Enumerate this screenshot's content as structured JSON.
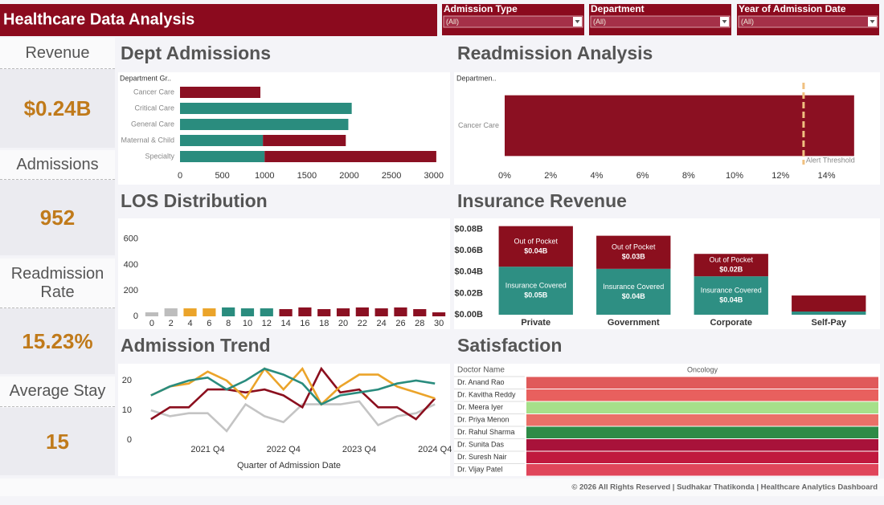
{
  "header": {
    "title": "Healthcare Data Analysis"
  },
  "filters": [
    {
      "label": "Admission Type",
      "value": "(All)"
    },
    {
      "label": "Department",
      "value": "(All)"
    },
    {
      "label": "Year of Admission Date",
      "value": "(All)"
    }
  ],
  "kpis": [
    {
      "label": "Revenue",
      "value": "$0.24B"
    },
    {
      "label": "Admissions",
      "value": "952"
    },
    {
      "label": "Readmission Rate",
      "value": "15.23%"
    },
    {
      "label": "Average Stay",
      "value": "15"
    }
  ],
  "chart_data": [
    {
      "type": "barh",
      "title": "Dept Admissions",
      "y_label": "Department Gr..",
      "categories": [
        "Cancer Care",
        "Critical Care",
        "General Care",
        "Maternal & Child",
        "Specialty"
      ],
      "series": [
        {
          "color": "#2a8c7e",
          "values": [
            0,
            2030,
            1990,
            980,
            1000
          ]
        },
        {
          "color": "#8b1022",
          "values": [
            950,
            0,
            0,
            980,
            2030
          ]
        }
      ],
      "xlim": [
        0,
        3050
      ],
      "xticks": [
        0,
        500,
        1000,
        1500,
        2000,
        2500,
        3000
      ]
    },
    {
      "type": "barh",
      "title": "Readmission Analysis",
      "y_label": "Departmen..",
      "categories": [
        "Cancer Care"
      ],
      "values": [
        15.2
      ],
      "color": "#8b1022",
      "xlim": [
        0,
        15.8
      ],
      "xticks": [
        {
          "value": 0,
          "label": "0%"
        },
        {
          "value": 2,
          "label": "2%"
        },
        {
          "value": 4,
          "label": "4%"
        },
        {
          "value": 6,
          "label": "6%"
        },
        {
          "value": 8,
          "label": "8%"
        },
        {
          "value": 10,
          "label": "10%"
        },
        {
          "value": 12,
          "label": "12%"
        },
        {
          "value": 14,
          "label": "14%"
        }
      ],
      "reference_line": {
        "value": 13,
        "label": "Alert Threshold",
        "color": "#f0c080"
      }
    },
    {
      "type": "bar",
      "title": "LOS Distribution",
      "categories": [
        0,
        2,
        4,
        6,
        8,
        10,
        12,
        14,
        16,
        18,
        20,
        22,
        24,
        26,
        28,
        30
      ],
      "values": [
        31,
        62,
        62,
        62,
        69,
        62,
        62,
        56,
        69,
        56,
        62,
        69,
        62,
        69,
        56,
        31
      ],
      "colors": [
        "#bdbdbd",
        "#bdbdbd",
        "#eba42a",
        "#eba42a",
        "#2a8c7e",
        "#2a8c7e",
        "#2a8c7e",
        "#8b1022",
        "#8b1022",
        "#8b1022",
        "#8b1022",
        "#8b1022",
        "#8b1022",
        "#8b1022",
        "#8b1022",
        "#8b1022"
      ],
      "ylim": [
        0,
        680
      ],
      "yticks": [
        0,
        200,
        400,
        600
      ]
    },
    {
      "type": "bar",
      "title": "Insurance Revenue",
      "categories": [
        "Private",
        "Government",
        "Corporate",
        "Self-Pay"
      ],
      "series": [
        {
          "name": "Insurance Covered",
          "color": "#2e8f83",
          "values": [
            0.045,
            0.043,
            0.036,
            0.003
          ],
          "value_labels": [
            "$0.05B",
            "$0.04B",
            "$0.04B",
            null
          ]
        },
        {
          "name": "Out of Pocket",
          "color": "#8b0f1e",
          "values": [
            0.038,
            0.031,
            0.021,
            0.015
          ],
          "value_labels": [
            "$0.04B",
            "$0.03B",
            "$0.02B",
            null
          ]
        }
      ],
      "ylim": [
        0,
        0.085
      ],
      "yticks": [
        {
          "value": 0,
          "label": "$0.00B"
        },
        {
          "value": 0.02,
          "label": "$0.02B"
        },
        {
          "value": 0.04,
          "label": "$0.04B"
        },
        {
          "value": 0.06,
          "label": "$0.06B"
        },
        {
          "value": 0.08,
          "label": "$0.08B"
        }
      ]
    },
    {
      "type": "line",
      "title": "Admission Trend",
      "x_label": "Quarter of Admission Date",
      "categories": [
        null,
        null,
        null,
        "2021 Q4",
        null,
        null,
        null,
        "2022 Q4",
        null,
        null,
        null,
        "2023 Q4",
        null,
        null,
        null,
        "2024 Q4"
      ],
      "series": [
        {
          "color": "#2a8c7e",
          "values": [
            15,
            18,
            20,
            21,
            17,
            20,
            24,
            22,
            19,
            12,
            15,
            16,
            17,
            19,
            20,
            19
          ]
        },
        {
          "color": "#eba42a",
          "values": [
            15,
            18,
            19,
            23,
            20,
            14,
            24,
            17,
            24,
            12,
            18,
            22,
            22,
            18,
            16,
            14
          ]
        },
        {
          "color": "#8b0f1e",
          "values": [
            7,
            11,
            11,
            17,
            17,
            16,
            17,
            15,
            11,
            24,
            16,
            17,
            11,
            11,
            7,
            14
          ]
        },
        {
          "color": "#c4c4c4",
          "values": [
            10,
            8,
            9,
            9,
            3,
            12,
            8,
            6,
            12,
            12,
            12,
            13,
            5,
            8,
            9,
            12
          ]
        }
      ],
      "ylim": [
        0,
        25
      ],
      "yticks": [
        0,
        10,
        20
      ]
    },
    {
      "type": "heatmap",
      "title": "Satisfaction",
      "row_header": "Doctor Name",
      "columns": [
        "Oncology"
      ],
      "rows": [
        "Dr. Anand Rao",
        "Dr. Kavitha Reddy",
        "Dr. Meera Iyer",
        "Dr. Priya Menon",
        "Dr. Rahul Sharma",
        "Dr. Sunita Das",
        "Dr. Suresh Nair",
        "Dr. Vijay Patel"
      ],
      "colors": [
        "#e05a5a",
        "#e8605e",
        "#a6e08a",
        "#ea7068",
        "#2e8b47",
        "#a8123a",
        "#c0193e",
        "#e0455a"
      ]
    }
  ],
  "footer": "© 2026 All Rights Reserved | Sudhakar Thatikonda | Healthcare Analytics Dashboard"
}
